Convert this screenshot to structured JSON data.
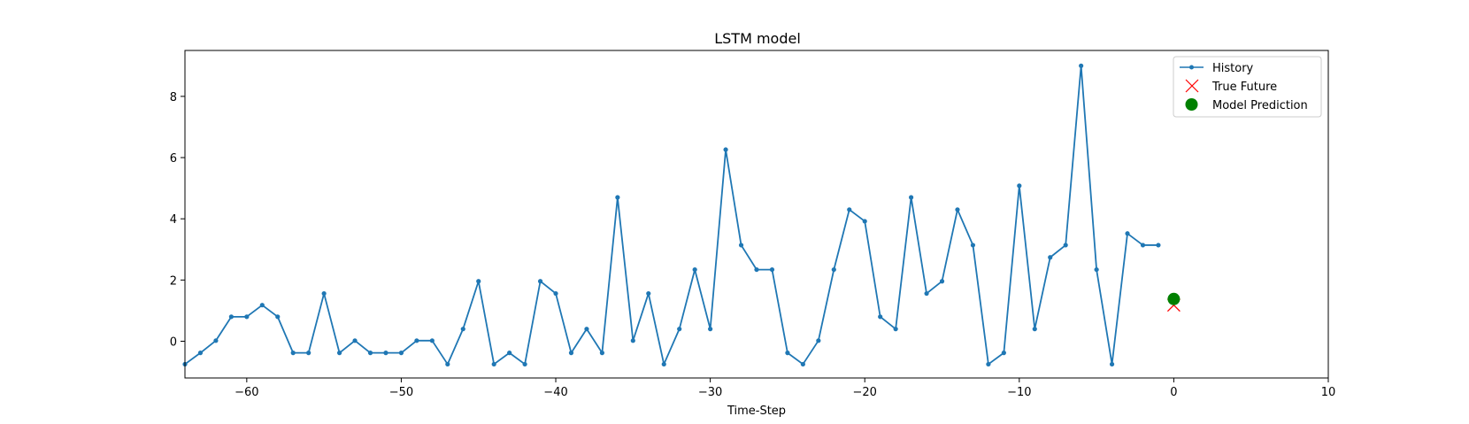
{
  "chart_data": {
    "type": "line",
    "title": "LSTM model",
    "xlabel": "Time-Step",
    "ylabel": "",
    "xlim": [
      -64,
      10
    ],
    "ylim": [
      -1.2,
      9.5
    ],
    "xticks": [
      -60,
      -50,
      -40,
      -30,
      -20,
      -10,
      0,
      10
    ],
    "xtick_labels": [
      "−60",
      "−50",
      "−40",
      "−30",
      "−20",
      "−10",
      "0",
      "10"
    ],
    "yticks": [
      0,
      2,
      4,
      6,
      8
    ],
    "ytick_labels": [
      "0",
      "2",
      "4",
      "6",
      "8"
    ],
    "legend_position": "top-right",
    "colors": {
      "history": "#1f77b4",
      "true_future": "#ff0000",
      "prediction": "#008000"
    },
    "series": [
      {
        "name": "History",
        "marker": "dot",
        "x": [
          -64,
          -63,
          -62,
          -61,
          -60,
          -59,
          -58,
          -57,
          -56,
          -55,
          -54,
          -53,
          -52,
          -51,
          -50,
          -49,
          -48,
          -47,
          -46,
          -45,
          -44,
          -43,
          -42,
          -41,
          -40,
          -39,
          -38,
          -37,
          -36,
          -35,
          -34,
          -33,
          -32,
          -31,
          -30,
          -29,
          -28,
          -27,
          -26,
          -25,
          -24,
          -23,
          -22,
          -21,
          -20,
          -19,
          -18,
          -17,
          -16,
          -15,
          -14,
          -13,
          -12,
          -11,
          -10,
          -9,
          -8,
          -7,
          -6,
          -5,
          -4,
          -3,
          -2,
          -1
        ],
        "values": [
          -0.75,
          -0.38,
          0.02,
          0.8,
          0.8,
          1.18,
          0.8,
          -0.38,
          -0.38,
          1.56,
          -0.38,
          0.02,
          -0.38,
          -0.38,
          -0.38,
          0.02,
          0.02,
          -0.75,
          0.4,
          1.96,
          -0.75,
          -0.38,
          -0.75,
          1.96,
          1.56,
          -0.38,
          0.4,
          -0.38,
          4.7,
          0.02,
          1.56,
          -0.75,
          0.4,
          2.34,
          0.4,
          6.26,
          3.14,
          2.34,
          2.34,
          -0.38,
          -0.75,
          0.02,
          2.34,
          4.3,
          3.92,
          0.8,
          0.4,
          4.7,
          1.56,
          1.96,
          4.3,
          3.14,
          -0.75,
          -0.38,
          5.08,
          0.4,
          2.74,
          3.14,
          9.0,
          2.34,
          -0.75,
          3.52,
          3.14,
          3.14
        ]
      },
      {
        "name": "True Future",
        "marker": "x",
        "x": [
          0
        ],
        "values": [
          1.18
        ]
      },
      {
        "name": "Model Prediction",
        "marker": "circle",
        "x": [
          0
        ],
        "values": [
          1.38
        ]
      }
    ]
  }
}
